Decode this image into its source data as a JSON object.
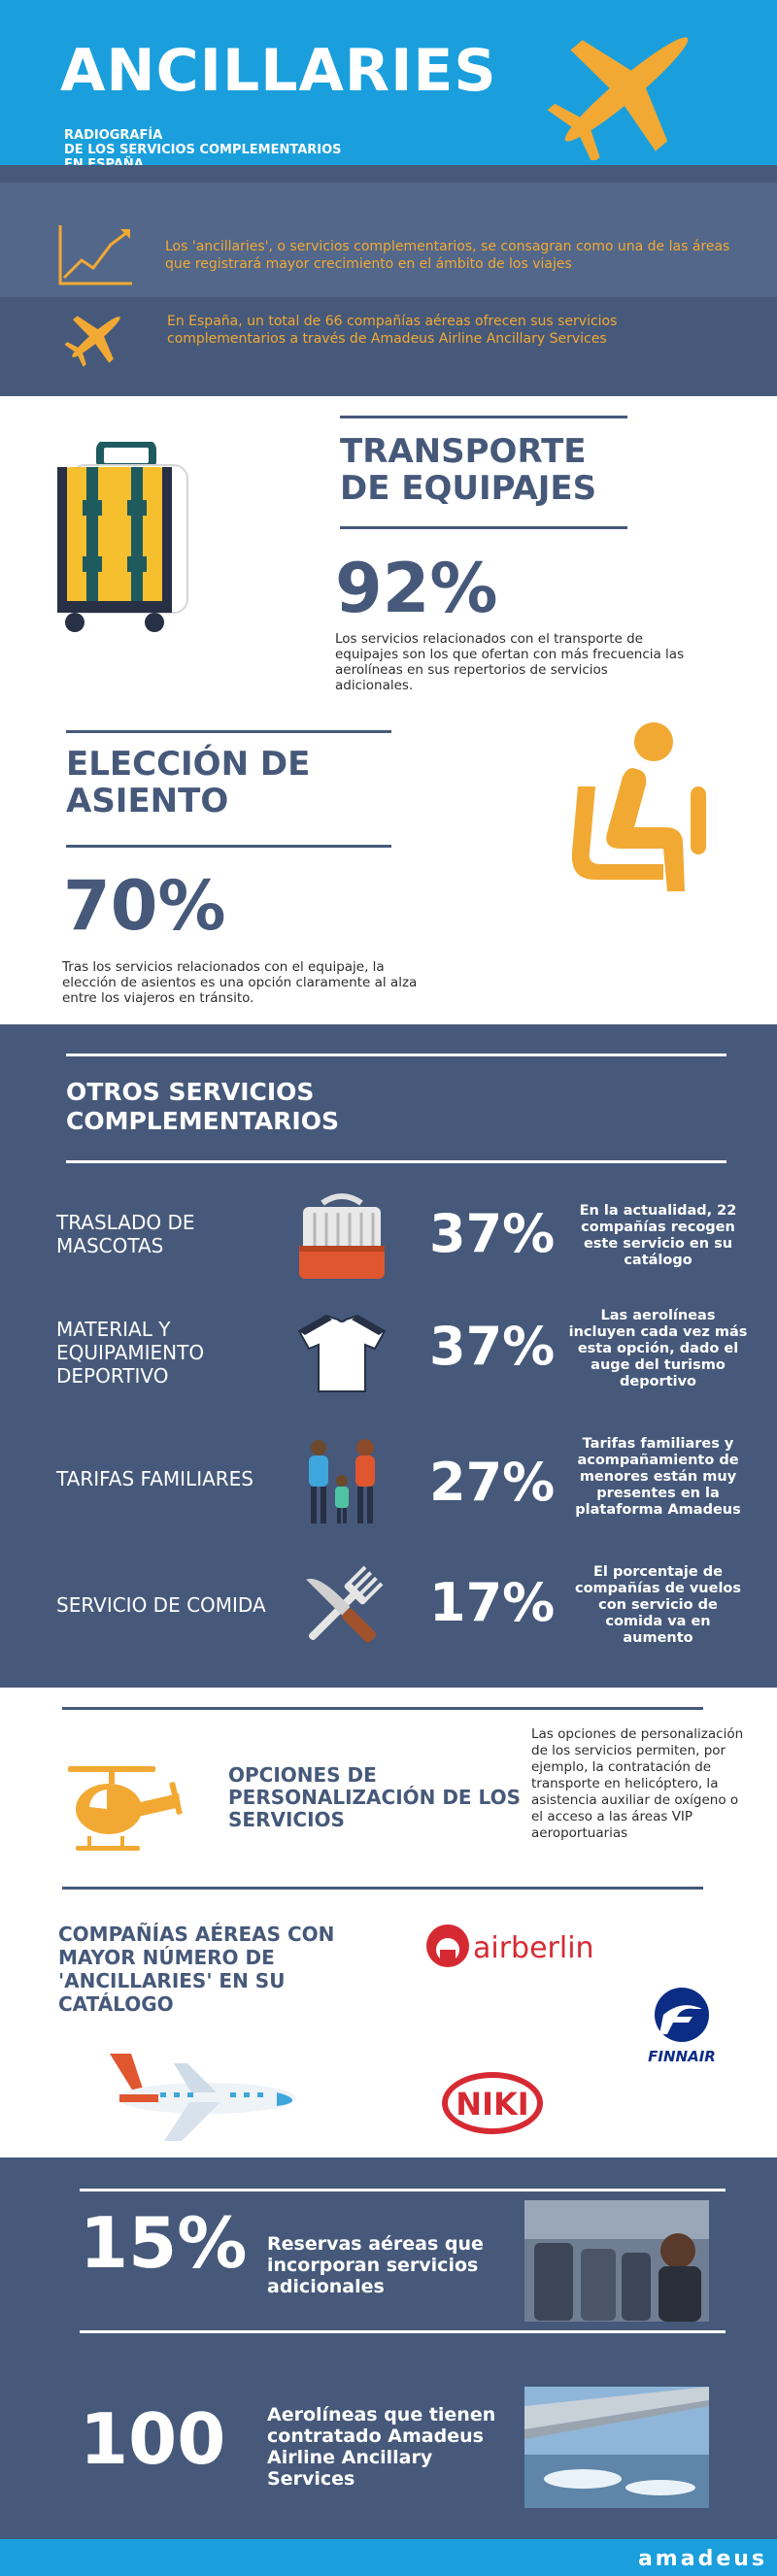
{
  "header": {
    "title": "ANCILLARIES",
    "subtitle_lines": [
      "RADIOGRAFÍA",
      "DE LOS SERVICIOS COMPLEMENTARIOS",
      "EN ESPAÑA"
    ]
  },
  "intro": {
    "text1": "Los 'ancillaries', o servicios complementarios, se consagran como una de las áreas que registrará mayor crecimiento en el ámbito de los viajes",
    "text2": "En España, un total de 66 compañías aéreas ofrecen sus servicios complementarios a través de Amadeus Airline Ancillary Services"
  },
  "luggage": {
    "title_line1": "TRANSPORTE",
    "title_line2": "DE EQUIPAJES",
    "percent": "92%",
    "text": "Los servicios relacionados con el transporte de equipajes son los que ofertan con más frecuencia las aerolíneas en sus repertorios de servicios adicionales."
  },
  "seat": {
    "title_line1": "ELECCIÓN DE",
    "title_line2": "ASIENTO",
    "percent": "70%",
    "text": "Tras los servicios relacionados con el equipaje, la elección de asientos es una opción claramente al alza entre los viajeros en tránsito."
  },
  "others": {
    "title_line1": "OTROS SERVICIOS",
    "title_line2": "COMPLEMENTARIOS",
    "rows": [
      {
        "label": "TRASLADO DE MASCOTAS",
        "percent": "37%",
        "desc": "En la actualidad, 22 compañías recogen este servicio en su catálogo"
      },
      {
        "label": "MATERIAL Y EQUIPAMIENTO DEPORTIVO",
        "percent": "37%",
        "desc": "Las aerolíneas incluyen cada vez más esta opción, dado el auge del turismo deportivo"
      },
      {
        "label": "TARIFAS FAMILIARES",
        "percent": "27%",
        "desc": "Tarifas familiares y acompañamiento de menores están muy presentes en la plataforma Amadeus"
      },
      {
        "label": "SERVICIO DE COMIDA",
        "percent": "17%",
        "desc": "El porcentaje de compañías de vuelos con servicio de comida va en aumento"
      }
    ]
  },
  "personalization": {
    "title": "OPCIONES DE PERSONALIZACIÓN DE LOS SERVICIOS",
    "text": "Las opciones de personalización de los servicios permiten, por ejemplo, la contratación de transporte en helicóptero, la asistencia auxiliar de oxígeno o el acceso a las áreas VIP aeroportuarias"
  },
  "airlines": {
    "title": "COMPAÑÍAS AÉREAS CON MAYOR NÚMERO DE 'ANCILLARIES' EN SU CATÁLOGO",
    "logos": [
      "airberlin",
      "FINNAIR",
      "NIKI"
    ]
  },
  "stats": [
    {
      "number": "15%",
      "text": "Reservas aéreas que incorporan servicios adicionales"
    },
    {
      "number": "100",
      "text": "Aerolíneas que tienen contratado Amadeus Airline Ancillary Services"
    }
  ],
  "brand": "amadeus",
  "colors": {
    "blue": "#1a9fdc",
    "slate": "#46597a",
    "orange": "#f2a933"
  }
}
